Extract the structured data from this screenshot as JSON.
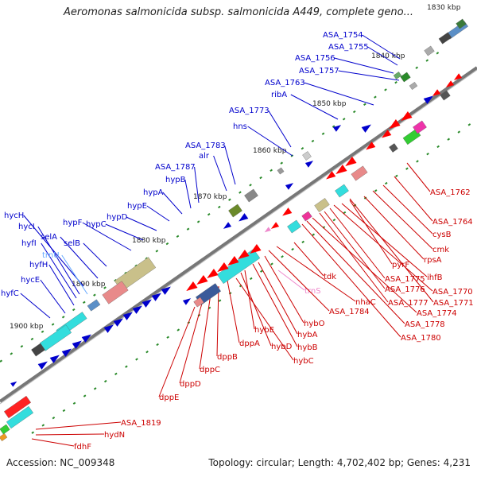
{
  "title": "Aeromonas salmonicida subsp. salmonicida A449, complete geno...",
  "footer": {
    "accession": "Accession: NC_009348",
    "summary": "Topology: circular; Length: 4,702,402 bp; Genes: 4,231"
  },
  "colors": {
    "upper_strand_labels": "#0000cc",
    "lower_strand_labels": "#cc0000",
    "rna_labels_upper": "#66aaff",
    "rna_labels_lower": "#ee88cc",
    "backbone": "#888888",
    "tick": "#228822"
  },
  "kbp_ticks": [
    "1830 kbp",
    "1840 kbp",
    "1850 kbp",
    "1860 kbp",
    "1870 kbp",
    "1880 kbp",
    "1890 kbp",
    "1900 kbp"
  ],
  "upper_labels": [
    "ASA_1754",
    "ASA_1755",
    "ASA_1756",
    "ASA_1757",
    "ASA_1763",
    "ribA",
    "ASA_1773",
    "hns",
    "ASA_1783",
    "alr",
    "ASA_1787",
    "hypB",
    "hypA",
    "hypE",
    "hypD",
    "hypC",
    "hypF",
    "selB",
    "selA",
    "hycH",
    "hycI",
    "hyfI",
    "hyfH",
    "hycE",
    "hyfC",
    "trnU"
  ],
  "lower_labels": [
    "ASA_1762",
    "ASA_1764",
    "cysB",
    "cmk",
    "rpsA",
    "pyrF",
    "ihfB",
    "ASA_1775",
    "ASA_1776",
    "ASA_1770",
    "ASA_1777",
    "ASA_1771",
    "ASA_1774",
    "ASA_1778",
    "ASA_1780",
    "tdk",
    "trnS",
    "nhaC",
    "ASA_1784",
    "hybO",
    "hybA",
    "hybE",
    "hybB",
    "hybD",
    "hybC",
    "dppA",
    "dppB",
    "dppC",
    "dppD",
    "dppE",
    "ASA_1819",
    "hydN",
    "fdhF"
  ]
}
